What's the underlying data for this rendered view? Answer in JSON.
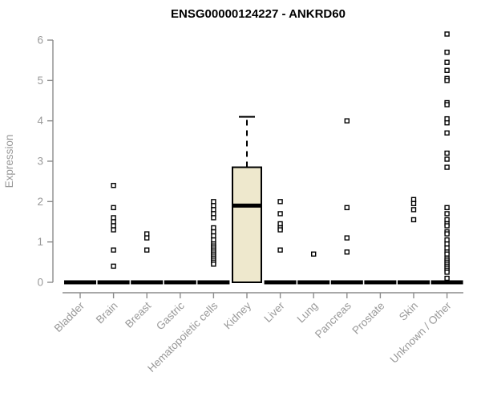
{
  "chart_data": {
    "type": "boxplot",
    "title": "ENSG00000124227 - ANKRD60",
    "ylabel": "Expression",
    "xlabel": "",
    "ylim": [
      0,
      6
    ],
    "yticks": [
      0,
      1,
      2,
      3,
      4,
      5,
      6
    ],
    "grid": false,
    "legend_position": "none",
    "categories": [
      "Bladder",
      "Brain",
      "Breast",
      "Gastric",
      "Hematopoietic cells",
      "Kidney",
      "Liver",
      "Lung",
      "Pancreas",
      "Prostate",
      "Skin",
      "Unknown / Other"
    ],
    "boxes": [
      {
        "category": "Bladder",
        "q1": 0,
        "median": 0,
        "q3": 0,
        "whisker_low": 0,
        "whisker_high": 0,
        "outliers": []
      },
      {
        "category": "Brain",
        "q1": 0,
        "median": 0,
        "q3": 0,
        "whisker_low": 0,
        "whisker_high": 0,
        "outliers": [
          2.4,
          1.85,
          1.6,
          1.5,
          1.4,
          1.3,
          0.8,
          0.4
        ]
      },
      {
        "category": "Breast",
        "q1": 0,
        "median": 0,
        "q3": 0,
        "whisker_low": 0,
        "whisker_high": 0,
        "outliers": [
          1.2,
          1.1,
          0.8
        ]
      },
      {
        "category": "Gastric",
        "q1": 0,
        "median": 0,
        "q3": 0,
        "whisker_low": 0,
        "whisker_high": 0,
        "outliers": []
      },
      {
        "category": "Hematopoietic cells",
        "q1": 0,
        "median": 0,
        "q3": 0,
        "whisker_low": 0,
        "whisker_high": 0,
        "outliers": [
          2.0,
          1.9,
          1.8,
          1.7,
          1.6,
          1.35,
          1.25,
          1.15,
          1.05,
          0.95,
          0.9,
          0.85,
          0.8,
          0.75,
          0.7,
          0.65,
          0.6,
          0.55,
          0.5,
          0.45
        ]
      },
      {
        "category": "Kidney",
        "q1": 0,
        "median": 1.9,
        "q3": 2.85,
        "whisker_low": 0,
        "whisker_high": 4.1,
        "outliers": []
      },
      {
        "category": "Liver",
        "q1": 0,
        "median": 0,
        "q3": 0,
        "whisker_low": 0,
        "whisker_high": 0,
        "outliers": [
          2.0,
          1.7,
          1.45,
          1.35,
          1.3,
          0.8
        ]
      },
      {
        "category": "Lung",
        "q1": 0,
        "median": 0,
        "q3": 0,
        "whisker_low": 0,
        "whisker_high": 0,
        "outliers": [
          0.7
        ]
      },
      {
        "category": "Pancreas",
        "q1": 0,
        "median": 0,
        "q3": 0,
        "whisker_low": 0,
        "whisker_high": 0,
        "outliers": [
          4.0,
          1.85,
          1.1,
          0.75
        ]
      },
      {
        "category": "Prostate",
        "q1": 0,
        "median": 0,
        "q3": 0,
        "whisker_low": 0,
        "whisker_high": 0,
        "outliers": []
      },
      {
        "category": "Skin",
        "q1": 0,
        "median": 0,
        "q3": 0,
        "whisker_low": 0,
        "whisker_high": 0,
        "outliers": [
          2.05,
          1.95,
          1.8,
          1.55
        ]
      },
      {
        "category": "Unknown / Other",
        "q1": 0,
        "median": 0,
        "q3": 0,
        "whisker_low": 0,
        "whisker_high": 0,
        "outliers": [
          6.15,
          5.7,
          5.45,
          5.25,
          5.05,
          5.0,
          4.45,
          4.4,
          4.05,
          3.95,
          3.7,
          3.2,
          3.05,
          2.85,
          1.85,
          1.7,
          1.55,
          1.45,
          1.4,
          1.25,
          1.2,
          1.05,
          0.95,
          0.85,
          0.75,
          0.7,
          0.6,
          0.55,
          0.5,
          0.45,
          0.4,
          0.35,
          0.3,
          0.25,
          0.1
        ]
      }
    ],
    "colors": {
      "background": "#FFFFFF",
      "box_fill": "#EEE8CD",
      "box_stroke": "#000000",
      "median": "#000000",
      "point_stroke": "#000000",
      "point_fill": "#FFFFFF",
      "axis": "#8C8C8C",
      "tick_label": "#999999",
      "title": "#000000"
    }
  }
}
